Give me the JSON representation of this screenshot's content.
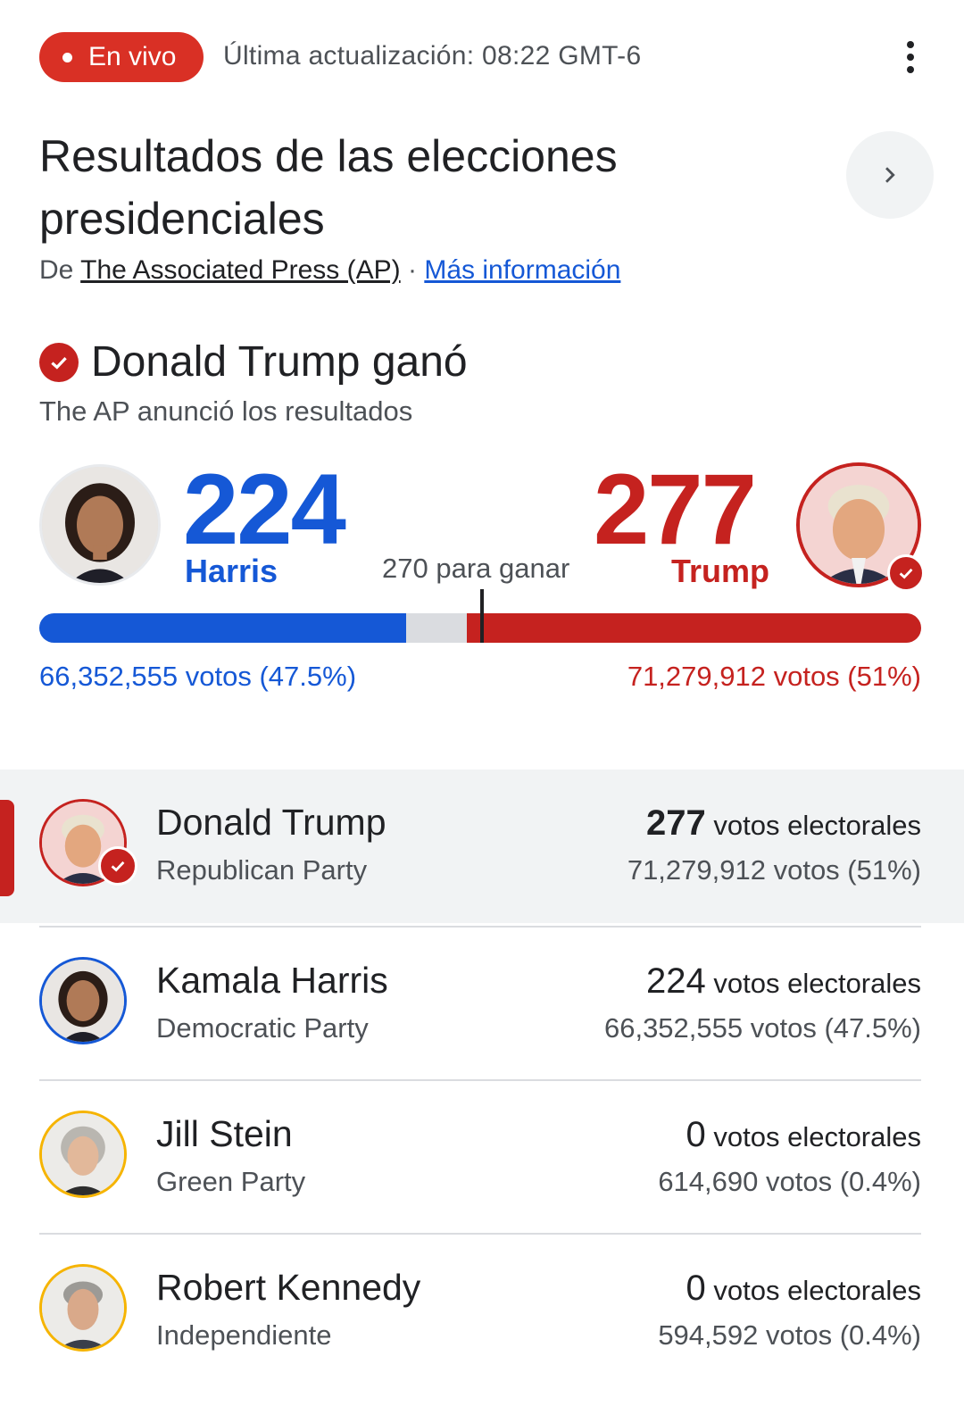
{
  "header": {
    "live_label": "En vivo",
    "updated_text": "Última actualización: 08:22 GMT-6",
    "more_icon": "more-vert-icon"
  },
  "title": {
    "line1": "Resultados de las elecciones",
    "line2": "presidenciales"
  },
  "source": {
    "prefix": "De",
    "publisher": "The Associated Press (AP)",
    "separator": "·",
    "more_info": "Más información"
  },
  "result": {
    "winner_text": "Donald Trump ganó",
    "subtitle": "The AP anunció los resultados"
  },
  "scoreboard": {
    "harris_ev": "224",
    "harris_name": "Harris",
    "trump_ev": "277",
    "trump_name": "Trump",
    "to_win": "270 para ganar",
    "harris_votes": "66,352,555 votos (47.5%)",
    "trump_votes": "71,279,912 votos (51%)",
    "total_ev": 538,
    "harris_ev_value": 224,
    "trump_ev_value": 277,
    "threshold_value": 270
  },
  "colors": {
    "democrat": "#1558d6",
    "republican": "#c5221f",
    "green": "#f6b400",
    "independent": "#f6b400",
    "live": "#d93025"
  },
  "candidates": [
    {
      "name": "Donald Trump",
      "party": "Republican Party",
      "ev": "277",
      "ev_label": "votos electorales",
      "votes": "71,279,912 votos (51%)"
    },
    {
      "name": "Kamala Harris",
      "party": "Democratic Party",
      "ev": "224",
      "ev_label": "votos electorales",
      "votes": "66,352,555 votos (47.5%)"
    },
    {
      "name": "Jill Stein",
      "party": "Green Party",
      "ev": "0",
      "ev_label": "votos electorales",
      "votes": "614,690 votos (0.4%)"
    },
    {
      "name": "Robert Kennedy",
      "party": "Independiente",
      "ev": "0",
      "ev_label": "votos electorales",
      "votes": "594,592 votos (0.4%)"
    }
  ]
}
